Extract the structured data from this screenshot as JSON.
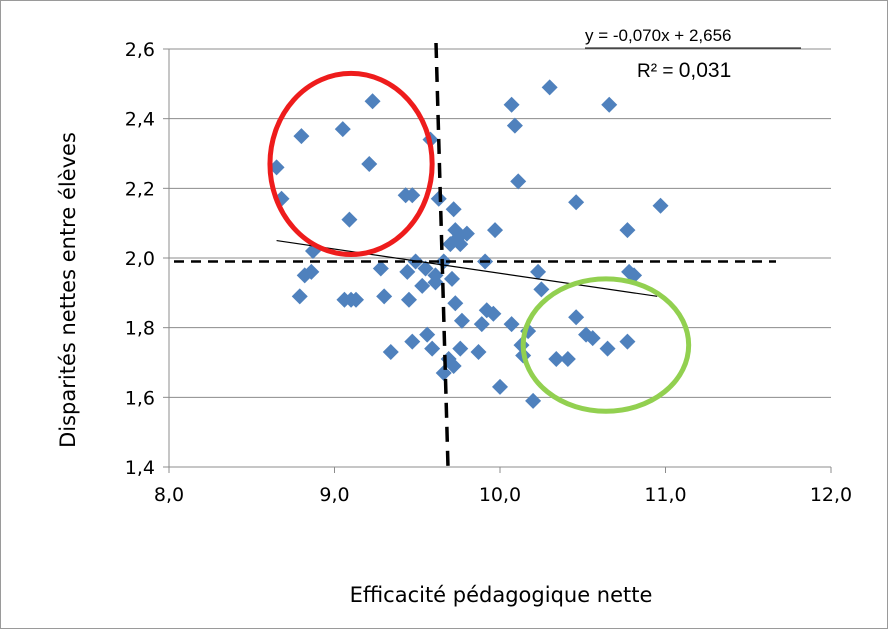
{
  "chart_data": {
    "type": "scatter",
    "xlabel": "Efficacité pédagogique nette",
    "ylabel": "Disparités nettes entre élèves",
    "xlim": [
      8.0,
      12.0
    ],
    "ylim": [
      1.4,
      2.6
    ],
    "x_ticks": [
      "8,0",
      "9,0",
      "10,0",
      "11,0",
      "12,0"
    ],
    "y_ticks": [
      "1,4",
      "1,6",
      "1,8",
      "2,0",
      "2,2",
      "2,4",
      "2,6"
    ],
    "y_tick_values": [
      1.4,
      1.6,
      1.8,
      2.0,
      2.2,
      2.4,
      2.6
    ],
    "x_tick_values": [
      8.0,
      9.0,
      10.0,
      11.0,
      12.0
    ],
    "grid": "horizontal",
    "marker_color": "#4f81bd",
    "points": [
      [
        8.65,
        2.26
      ],
      [
        8.68,
        2.17
      ],
      [
        8.8,
        2.35
      ],
      [
        9.05,
        2.37
      ],
      [
        9.23,
        2.45
      ],
      [
        9.21,
        2.27
      ],
      [
        9.09,
        2.11
      ],
      [
        9.43,
        2.18
      ],
      [
        9.47,
        2.18
      ],
      [
        9.58,
        2.34
      ],
      [
        9.63,
        2.17
      ],
      [
        9.72,
        2.14
      ],
      [
        9.73,
        2.08
      ],
      [
        9.75,
        2.06
      ],
      [
        9.8,
        2.07
      ],
      [
        9.7,
        2.04
      ],
      [
        9.76,
        2.04
      ],
      [
        9.66,
        1.99
      ],
      [
        9.61,
        1.95
      ],
      [
        9.55,
        1.97
      ],
      [
        9.49,
        1.99
      ],
      [
        9.44,
        1.96
      ],
      [
        9.45,
        1.88
      ],
      [
        9.53,
        1.92
      ],
      [
        9.61,
        1.93
      ],
      [
        9.71,
        1.94
      ],
      [
        9.91,
        1.99
      ],
      [
        9.97,
        2.08
      ],
      [
        10.07,
        2.44
      ],
      [
        10.09,
        2.38
      ],
      [
        10.11,
        2.22
      ],
      [
        10.3,
        2.49
      ],
      [
        10.66,
        2.44
      ],
      [
        10.46,
        2.16
      ],
      [
        10.77,
        2.08
      ],
      [
        10.97,
        2.15
      ],
      [
        10.81,
        1.95
      ],
      [
        10.78,
        1.96
      ],
      [
        10.23,
        1.96
      ],
      [
        10.25,
        1.91
      ],
      [
        8.79,
        1.89
      ],
      [
        8.82,
        1.95
      ],
      [
        8.86,
        1.96
      ],
      [
        8.87,
        2.02
      ],
      [
        9.06,
        1.88
      ],
      [
        9.1,
        1.88
      ],
      [
        9.13,
        1.88
      ],
      [
        9.28,
        1.97
      ],
      [
        9.3,
        1.89
      ],
      [
        9.34,
        1.73
      ],
      [
        9.47,
        1.76
      ],
      [
        9.56,
        1.78
      ],
      [
        9.59,
        1.74
      ],
      [
        9.66,
        1.67
      ],
      [
        9.69,
        1.71
      ],
      [
        9.72,
        1.69
      ],
      [
        9.73,
        1.87
      ],
      [
        9.77,
        1.82
      ],
      [
        9.76,
        1.74
      ],
      [
        9.87,
        1.73
      ],
      [
        9.89,
        1.81
      ],
      [
        9.92,
        1.85
      ],
      [
        9.96,
        1.84
      ],
      [
        10.0,
        1.63
      ],
      [
        10.07,
        1.81
      ],
      [
        10.13,
        1.75
      ],
      [
        10.14,
        1.72
      ],
      [
        10.17,
        1.79
      ],
      [
        10.2,
        1.59
      ],
      [
        10.34,
        1.71
      ],
      [
        10.41,
        1.71
      ],
      [
        10.46,
        1.83
      ],
      [
        10.52,
        1.78
      ],
      [
        10.56,
        1.77
      ],
      [
        10.65,
        1.74
      ],
      [
        10.77,
        1.76
      ]
    ],
    "trendline": {
      "x": [
        8.65,
        10.95
      ],
      "y": [
        2.05,
        1.89
      ],
      "equation": "y = -0,070x  + 2,656",
      "r2_prefix": "R² = ",
      "r2_value": "0,031"
    },
    "reference_lines": {
      "x": 9.67,
      "y": 1.99
    },
    "annotations": [
      {
        "shape": "ellipse",
        "color": "#ee1c1c",
        "cx": 9.1,
        "cy": 2.27,
        "rx": 0.49,
        "ry": 0.26
      },
      {
        "shape": "ellipse",
        "color": "#92d050",
        "cx": 10.64,
        "cy": 1.75,
        "rx": 0.5,
        "ry": 0.19
      }
    ]
  }
}
